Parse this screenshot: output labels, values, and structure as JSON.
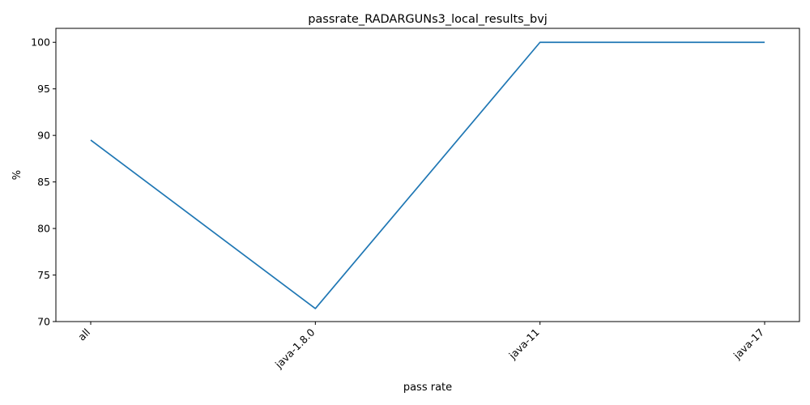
{
  "chart_data": {
    "type": "line",
    "title": "passrate_RADARGUNs3_local_results_bvj",
    "xlabel": "pass rate",
    "ylabel": "%",
    "categories": [
      "all",
      "java-1.8.0",
      "java-11",
      "java-17"
    ],
    "series": [
      {
        "values": [
          89.5,
          71.4,
          100,
          100
        ],
        "color": "#1f77b4"
      }
    ],
    "ylim": [
      70,
      101.5
    ],
    "yticks": [
      70,
      75,
      80,
      85,
      90,
      95,
      100
    ],
    "x_tick_rotation": "45 degrees",
    "grid": false,
    "legend": "none"
  }
}
